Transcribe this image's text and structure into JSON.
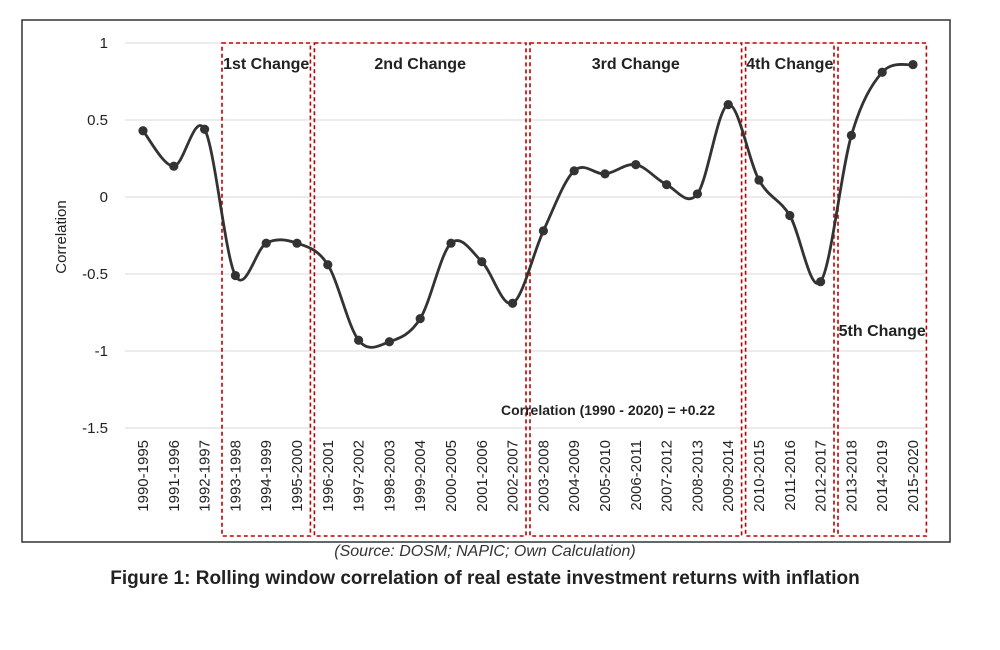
{
  "chart_data": {
    "type": "line",
    "ylabel": "Correlation",
    "ylim": [
      -1.5,
      1
    ],
    "yticks": [
      "1",
      "0.5",
      "0",
      "-0.5",
      "-1",
      "-1.5"
    ],
    "grid": true,
    "categories": [
      "1990-1995",
      "1991-1996",
      "1992-1997",
      "1993-1998",
      "1994-1999",
      "1995-2000",
      "1996-2001",
      "1997-2002",
      "1998-2003",
      "1999-2004",
      "2000-2005",
      "2001-2006",
      "2002-2007",
      "2003-2008",
      "2004-2009",
      "2005-2010",
      "2006-2011",
      "2007-2012",
      "2008-2013",
      "2009-2014",
      "2010-2015",
      "2011-2016",
      "2012-2017",
      "2013-2018",
      "2014-2019",
      "2015-2020"
    ],
    "values": [
      0.43,
      0.2,
      0.44,
      -0.51,
      -0.3,
      -0.3,
      -0.44,
      -0.93,
      -0.94,
      -0.79,
      -0.3,
      -0.42,
      -0.69,
      -0.22,
      0.17,
      0.15,
      0.21,
      0.08,
      0.02,
      0.6,
      0.11,
      -0.12,
      -0.55,
      0.4,
      0.81,
      0.86
    ],
    "periods": [
      {
        "label": "1st Change",
        "from": 3,
        "to": 5
      },
      {
        "label": "2nd Change",
        "from": 6,
        "to": 12
      },
      {
        "label": "3rd Change",
        "from": 13,
        "to": 19
      },
      {
        "label": "4th Change",
        "from": 20,
        "to": 22
      },
      {
        "label": "5th Change",
        "from": 23,
        "to": 25
      }
    ],
    "annotation": "Correlation (1990 - 2020) = +0.22",
    "line_color": "#333333",
    "box_color": "#c00000"
  },
  "source": "(Source: DOSM; NAPIC; Own Calculation)",
  "caption": "Figure 1: Rolling window correlation of real estate investment returns with inflation"
}
